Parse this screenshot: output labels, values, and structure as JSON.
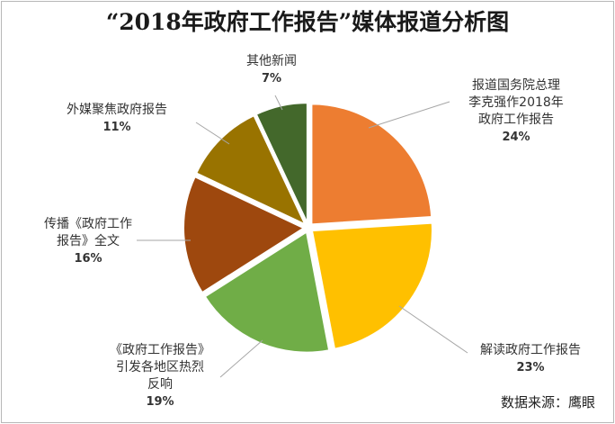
{
  "chart_data": {
    "type": "pie",
    "title": "“2018年政府工作报告”媒体报道分析图",
    "source": "数据来源：鹰眼",
    "slices": [
      {
        "label_lines": [
          "报道国务院总理",
          "李克强作2018年",
          "政府工作报告"
        ],
        "percent_label": "24%",
        "value": 24,
        "color": "#ED7D31"
      },
      {
        "label_lines": [
          "解读政府工作报告"
        ],
        "percent_label": "23%",
        "value": 23,
        "color": "#FFC000"
      },
      {
        "label_lines": [
          "《政府工作报告》",
          "引发各地区热烈",
          "反响"
        ],
        "percent_label": "19%",
        "value": 19,
        "color": "#70AD47"
      },
      {
        "label_lines": [
          "传播《政府工作",
          "报告》全文"
        ],
        "percent_label": "16%",
        "value": 16,
        "color": "#9E480E"
      },
      {
        "label_lines": [
          "外媒聚焦政府报告"
        ],
        "percent_label": "11%",
        "value": 11,
        "color": "#997300"
      },
      {
        "label_lines": [
          "其他新闻"
        ],
        "percent_label": "7%",
        "value": 7,
        "color": "#43682B"
      }
    ]
  }
}
